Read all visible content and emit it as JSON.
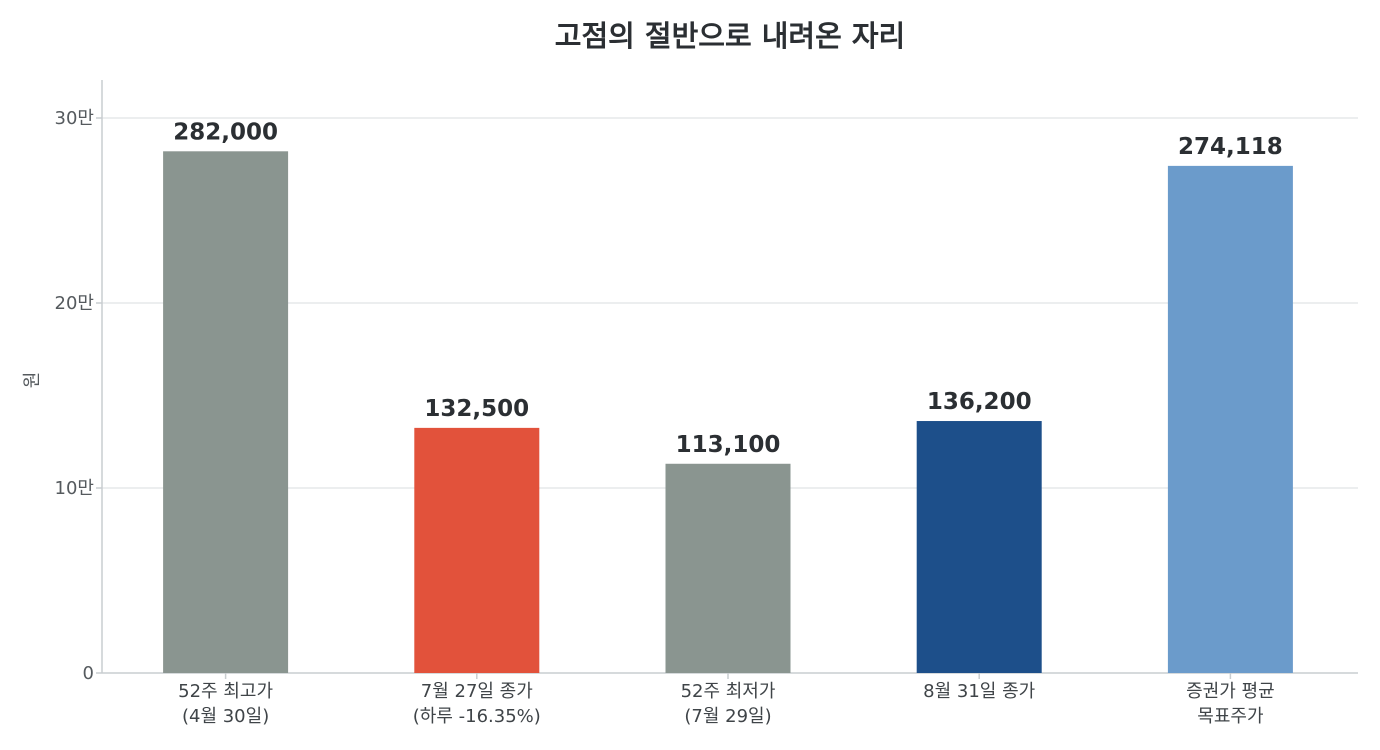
{
  "chart_data": {
    "type": "bar",
    "title": "고점의 절반으로 내려온 자리",
    "ylabel": "원",
    "ylim": [
      0,
      300000
    ],
    "yticks": [
      {
        "value": 0,
        "label": "0"
      },
      {
        "value": 100000,
        "label": "10만"
      },
      {
        "value": 200000,
        "label": "20만"
      },
      {
        "value": 300000,
        "label": "30만"
      }
    ],
    "grid": true,
    "categories": [
      [
        "52주 최고가",
        "(4월 30일)"
      ],
      [
        "7월 27일 종가",
        "(하루 -16.35%)"
      ],
      [
        "52주 최저가",
        "(7월 29일)"
      ],
      [
        "8월 31일 종가"
      ],
      [
        "증권가 평균",
        "목표주가"
      ]
    ],
    "values": [
      282000,
      132500,
      113100,
      136200,
      274118
    ],
    "data_labels": [
      "282,000",
      "132,500",
      "113,100",
      "136,200",
      "274,118"
    ],
    "colors": [
      "#8a9590",
      "#e2523b",
      "#8a9590",
      "#1d4f8a",
      "#6b9bcb"
    ]
  }
}
